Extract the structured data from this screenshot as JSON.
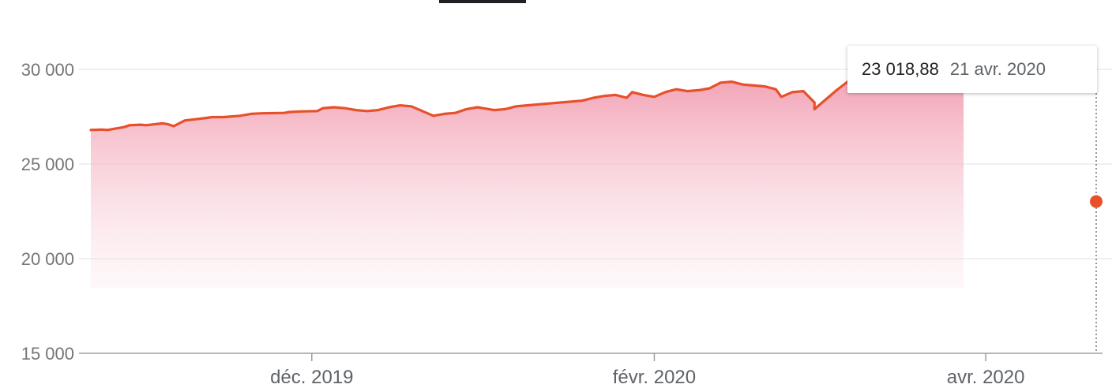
{
  "tooltip": {
    "value": "23 018,88",
    "date": "21 avr. 2020"
  },
  "colors": {
    "line": "#e8502a",
    "fill_top": "#f4a3b4",
    "grid": "#e0e0e0",
    "axis": "#9e9e9e"
  },
  "chart_data": {
    "type": "area",
    "title": "",
    "xlabel": "",
    "ylabel": "",
    "ylim": [
      15000,
      30000
    ],
    "y_ticks": [
      {
        "value": 30000,
        "label": "30 000"
      },
      {
        "value": 25000,
        "label": "25 000"
      },
      {
        "value": 20000,
        "label": "20 000"
      },
      {
        "value": 15000,
        "label": "15 000"
      }
    ],
    "x_ticks": [
      {
        "date": "2019-12-01",
        "label": "déc. 2019"
      },
      {
        "date": "2020-02-01",
        "label": "févr. 2020"
      },
      {
        "date": "2020-04-01",
        "label": "avr. 2020"
      }
    ],
    "xlim": [
      "2019-10-22",
      "2020-04-21"
    ],
    "grid": true,
    "series": [
      {
        "points": [
          [
            "2019-10-22",
            26800
          ],
          [
            "2019-10-24",
            26820
          ],
          [
            "2019-10-25",
            26800
          ],
          [
            "2019-10-28",
            26950
          ],
          [
            "2019-10-29",
            27050
          ],
          [
            "2019-10-31",
            27080
          ],
          [
            "2019-11-01",
            27050
          ],
          [
            "2019-11-04",
            27150
          ],
          [
            "2019-11-05",
            27100
          ],
          [
            "2019-11-06",
            27000
          ],
          [
            "2019-11-08",
            27300
          ],
          [
            "2019-11-11",
            27400
          ],
          [
            "2019-11-13",
            27480
          ],
          [
            "2019-11-15",
            27480
          ],
          [
            "2019-11-18",
            27550
          ],
          [
            "2019-11-20",
            27650
          ],
          [
            "2019-11-22",
            27680
          ],
          [
            "2019-11-26",
            27700
          ],
          [
            "2019-11-27",
            27750
          ],
          [
            "2019-11-29",
            27780
          ],
          [
            "2019-12-02",
            27800
          ],
          [
            "2019-12-03",
            27950
          ],
          [
            "2019-12-05",
            28000
          ],
          [
            "2019-12-07",
            27950
          ],
          [
            "2019-12-09",
            27850
          ],
          [
            "2019-12-11",
            27800
          ],
          [
            "2019-12-13",
            27850
          ],
          [
            "2019-12-15",
            28000
          ],
          [
            "2019-12-17",
            28100
          ],
          [
            "2019-12-19",
            28050
          ],
          [
            "2019-12-21",
            27800
          ],
          [
            "2019-12-23",
            27550
          ],
          [
            "2019-12-25",
            27650
          ],
          [
            "2019-12-27",
            27700
          ],
          [
            "2019-12-29",
            27900
          ],
          [
            "2019-12-31",
            28000
          ],
          [
            "2020-01-01",
            27950
          ],
          [
            "2020-01-03",
            27850
          ],
          [
            "2020-01-05",
            27900
          ],
          [
            "2020-01-07",
            28050
          ],
          [
            "2020-01-09",
            28100
          ],
          [
            "2020-01-11",
            28150
          ],
          [
            "2020-01-13",
            28200
          ],
          [
            "2020-01-15",
            28250
          ],
          [
            "2020-01-17",
            28300
          ],
          [
            "2020-01-19",
            28350
          ],
          [
            "2020-01-21",
            28500
          ],
          [
            "2020-01-23",
            28600
          ],
          [
            "2020-01-25",
            28650
          ],
          [
            "2020-01-27",
            28500
          ],
          [
            "2020-01-28",
            28800
          ],
          [
            "2020-01-30",
            28650
          ],
          [
            "2020-02-01",
            28550
          ],
          [
            "2020-02-03",
            28800
          ],
          [
            "2020-02-05",
            28950
          ],
          [
            "2020-02-07",
            28850
          ],
          [
            "2020-02-09",
            28900
          ],
          [
            "2020-02-11",
            29000
          ],
          [
            "2020-02-13",
            29300
          ],
          [
            "2020-02-15",
            29350
          ],
          [
            "2020-02-17",
            29200
          ],
          [
            "2020-02-19",
            29150
          ],
          [
            "2020-02-21",
            29100
          ],
          [
            "2020-02-23",
            28950
          ],
          [
            "2020-02-24",
            28550
          ],
          [
            "2020-02-26",
            28800
          ],
          [
            "2020-02-28",
            28850
          ],
          [
            "2020-03-01",
            28250
          ],
          [
            "2020-03-03",
            28400
          ],
          [
            "2020-03-05",
            28900
          ],
          [
            "2020-03-07",
            29350
          ],
          [
            "2020-03-09",
            29400
          ],
          [
            "2020-03-11",
            29150
          ],
          [
            "2020-03-13",
            29350
          ],
          [
            "2020-03-15",
            29300
          ],
          [
            "2020-03-17",
            29550
          ],
          [
            "2020-03-19",
            29450
          ],
          [
            "2020-03-21",
            29400
          ],
          [
            "2020-03-23",
            29250
          ],
          [
            "2020-03-25",
            29350
          ],
          [
            "2020-03-27",
            29200
          ],
          [
            "2020-03-28",
            28950
          ],
          [
            "2020-03-01",
            27900
          ]
        ]
      }
    ],
    "tooltip_point": {
      "date": "2020-04-21",
      "value": 23018.88
    }
  }
}
